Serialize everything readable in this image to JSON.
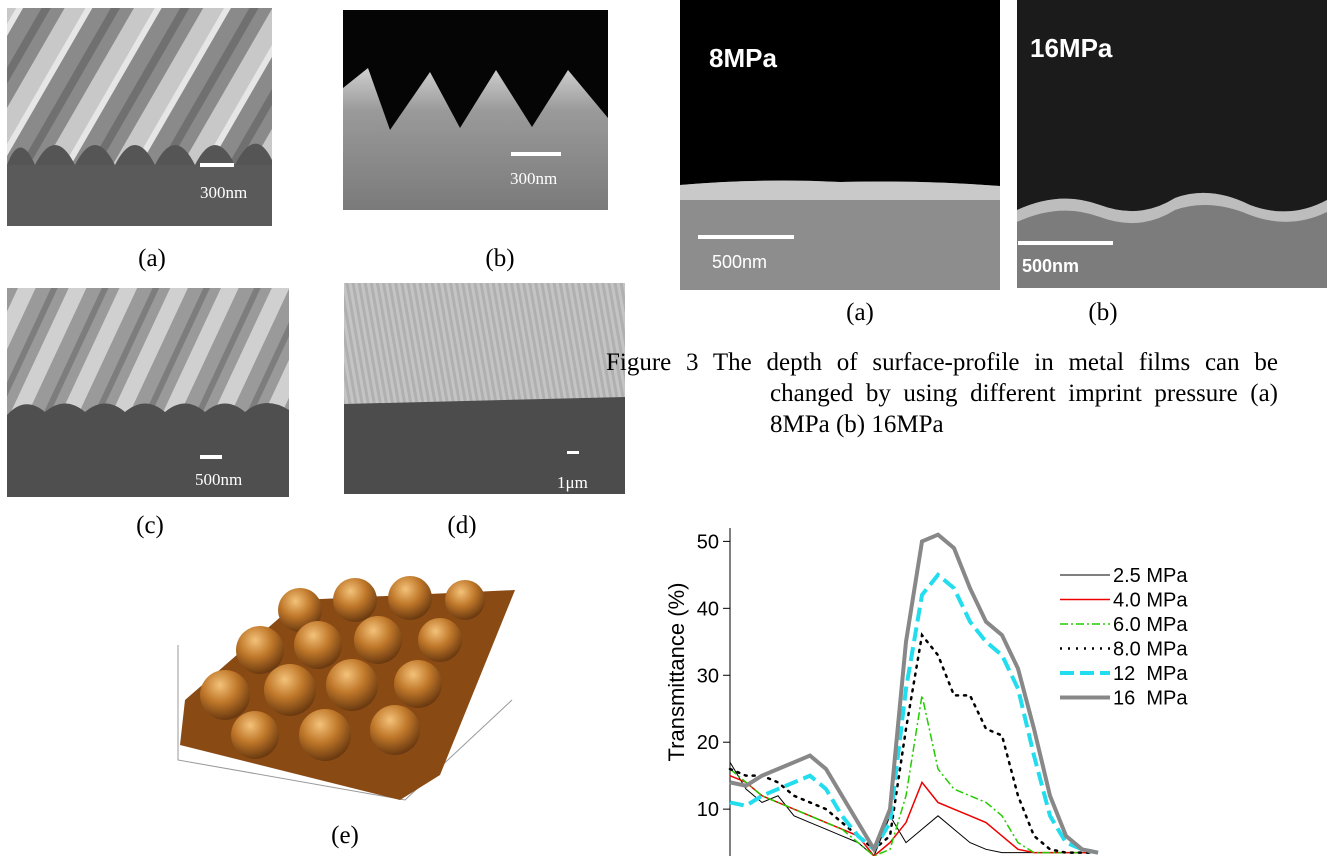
{
  "figure2": {
    "panels": [
      {
        "label": "(a)",
        "scale": "300nm"
      },
      {
        "label": "(b)",
        "scale": "300nm"
      },
      {
        "label": "(c)",
        "scale": "500nm"
      },
      {
        "label": "(d)",
        "scale": "1μm"
      },
      {
        "label": "(e)"
      }
    ]
  },
  "figure3": {
    "panels": [
      {
        "label": "(a)",
        "pressure": "8MPa",
        "scale": "500nm"
      },
      {
        "label": "(b)",
        "pressure": "16MPa",
        "scale": "500nm"
      }
    ],
    "caption": "Figure 3 The depth of surface-profile in metal films can be changed by using different imprint pressure (a) 8MPa (b) 16MPa"
  },
  "chart_data": {
    "type": "line",
    "y_label": "Transmittance (%)",
    "ylim": [
      3,
      52
    ],
    "yticks": [
      10,
      20,
      30,
      40,
      50
    ],
    "series": [
      {
        "name": "2.5 MPa",
        "color": "#000000",
        "linestyle": "solid",
        "linewidth": 1,
        "values": [
          17,
          13,
          11,
          12,
          9,
          8,
          7,
          6,
          5,
          3,
          9,
          5,
          7,
          9,
          7,
          5,
          4,
          3.5,
          3.5,
          3.5,
          3.5,
          3.5,
          3.5,
          3.5
        ]
      },
      {
        "name": "4.0 MPa",
        "color": "#ee0000",
        "linestyle": "solid",
        "linewidth": 1.5,
        "values": [
          15,
          14,
          12,
          11,
          10,
          9,
          8,
          7,
          6,
          3,
          5,
          8,
          14,
          11,
          10,
          9,
          8,
          6,
          4,
          3.5,
          3.5,
          3.5,
          3.5,
          3.5
        ]
      },
      {
        "name": "6.0 MPa",
        "color": "#22cc00",
        "linestyle": "dashdot",
        "linewidth": 1.5,
        "values": [
          16,
          14,
          12,
          11,
          10,
          9,
          8,
          7,
          5,
          3,
          4,
          12,
          27,
          16,
          13,
          12,
          11,
          9,
          5,
          3.5,
          3.5,
          3.5,
          3.5,
          3.5
        ]
      },
      {
        "name": "8.0 MPa",
        "color": "#000000",
        "linestyle": "dotted",
        "linewidth": 2.5,
        "values": [
          16,
          15,
          15,
          14,
          12,
          11,
          10,
          8,
          6,
          4,
          6,
          22,
          36,
          33,
          27,
          27,
          22,
          21,
          12,
          6,
          4,
          3.5,
          3.5,
          3.5
        ]
      },
      {
        "name": "12  MPa",
        "color": "#22ddee",
        "linestyle": "dashed",
        "linewidth": 4,
        "values": [
          11,
          10.5,
          12,
          13,
          14,
          15,
          13,
          9,
          6,
          4,
          8,
          28,
          42,
          45,
          43,
          38,
          35,
          33,
          28,
          18,
          9,
          5,
          4,
          3.5
        ]
      },
      {
        "name": "16  MPa",
        "color": "#888888",
        "linestyle": "solid",
        "linewidth": 4,
        "values": [
          14,
          13.5,
          15,
          16,
          17,
          18,
          16,
          12,
          8,
          4,
          10,
          35,
          50,
          51,
          49,
          43,
          38,
          36,
          31,
          22,
          12,
          6,
          4,
          3.5
        ]
      }
    ]
  }
}
